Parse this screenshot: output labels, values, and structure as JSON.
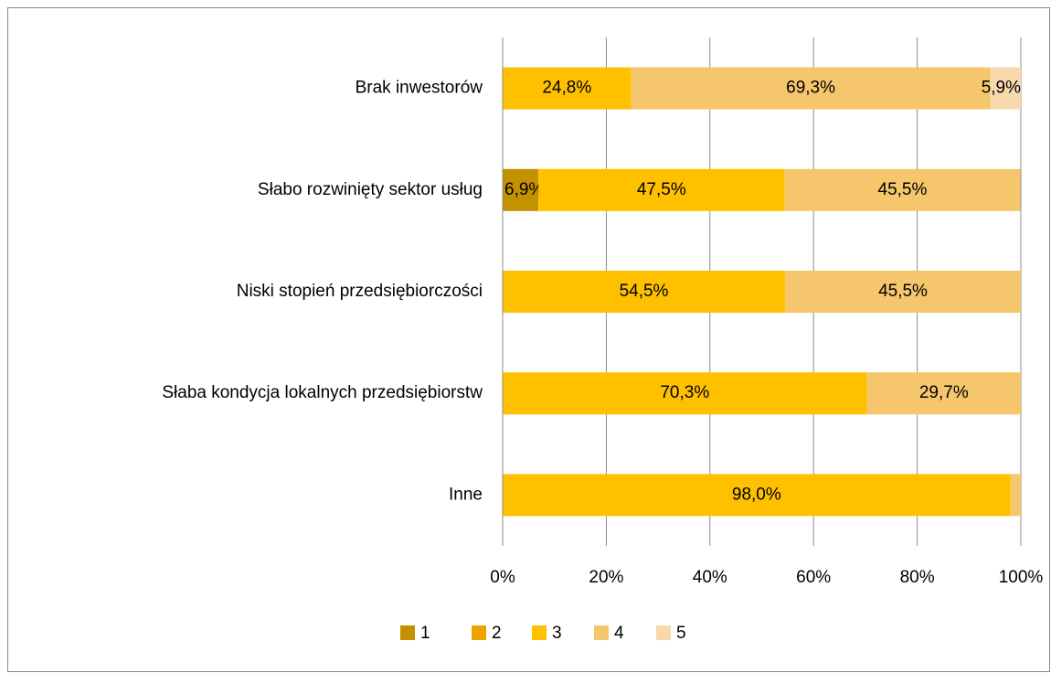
{
  "chart_data": {
    "type": "stacked-bar-horizontal",
    "categories": [
      "Brak inwestorów",
      "Słabo rozwinięty sektor usług",
      "Niski stopień przedsiębiorczości",
      "Słaba kondycja lokalnych przedsiębiorstw",
      "Inne"
    ],
    "series": [
      {
        "name": "1",
        "color": "#c49100",
        "values": [
          0,
          6.9,
          0,
          0,
          0
        ],
        "value_labels": [
          null,
          "6,9%",
          null,
          null,
          null
        ]
      },
      {
        "name": "2",
        "color": "#eea400",
        "values": [
          0,
          0,
          0,
          0,
          0
        ],
        "value_labels": [
          null,
          null,
          null,
          null,
          null
        ]
      },
      {
        "name": "3",
        "color": "#ffc000",
        "values": [
          24.8,
          47.5,
          54.5,
          70.3,
          98.0
        ],
        "value_labels": [
          "24,8%",
          "47,5%",
          "54,5%",
          "70,3%",
          "98,0%"
        ]
      },
      {
        "name": "4",
        "color": "#f6c66c",
        "values": [
          69.3,
          45.5,
          45.5,
          29.7,
          2.0
        ],
        "value_labels": [
          "69,3%",
          "45,5%",
          "45,5%",
          "29,7%",
          null
        ]
      },
      {
        "name": "5",
        "color": "#f7d9ad",
        "values": [
          5.9,
          0,
          0,
          0,
          0
        ],
        "value_labels": [
          "5,9%",
          null,
          null,
          null,
          null
        ]
      }
    ],
    "xlim": [
      0,
      100
    ],
    "xticks": [
      {
        "value": 0,
        "label": "0%"
      },
      {
        "value": 20,
        "label": "20%"
      },
      {
        "value": 40,
        "label": "40%"
      },
      {
        "value": 60,
        "label": "60%"
      },
      {
        "value": 80,
        "label": "80%"
      },
      {
        "value": 100,
        "label": "100%"
      }
    ],
    "grid": true,
    "legend": "bottom"
  }
}
